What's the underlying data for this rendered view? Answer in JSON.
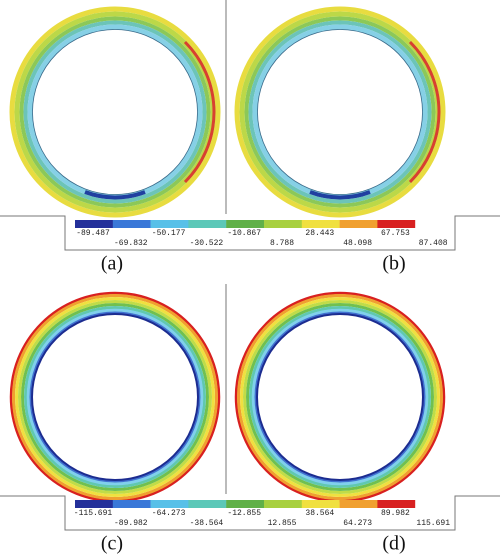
{
  "panels": [
    {
      "label": "(a)"
    },
    {
      "label": "(b)"
    },
    {
      "label": "(c)"
    },
    {
      "label": "(d)"
    }
  ],
  "colorbars": [
    {
      "labels": [
        "-89.487",
        "-69.832",
        "-50.177",
        "-30.522",
        "-10.867",
        "8.788",
        "28.443",
        "48.098",
        "67.753",
        "87.408"
      ]
    },
    {
      "labels": [
        "-115.691",
        "-89.982",
        "-64.273",
        "-38.564",
        "-12.855",
        "12.855",
        "38.564",
        "64.273",
        "89.982",
        "115.691"
      ]
    }
  ]
}
